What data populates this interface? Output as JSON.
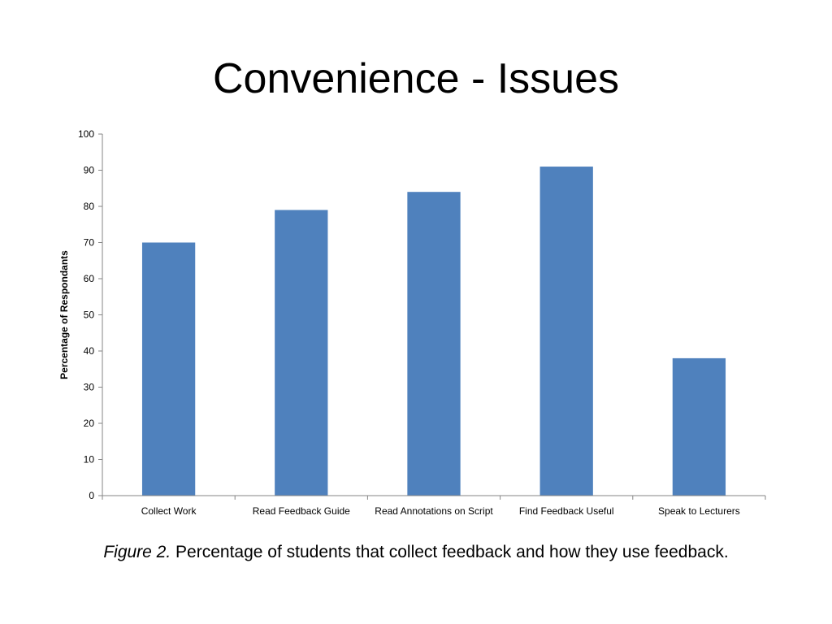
{
  "slide": {
    "title": "Convenience - Issues"
  },
  "caption": {
    "label": "Figure 2.",
    "text": "Percentage of students that collect feedback and how they use feedback."
  },
  "chart_data": {
    "type": "bar",
    "title": "",
    "xlabel": "",
    "ylabel": "Percentage of Respondants",
    "categories": [
      "Collect Work",
      "Read Feedback Guide",
      "Read Annotations on Script",
      "Find Feedback Useful",
      "Speak to Lecturers"
    ],
    "values": [
      70,
      79,
      84,
      91,
      38
    ],
    "ylim": [
      0,
      100
    ],
    "yticks": [
      0,
      10,
      20,
      30,
      40,
      50,
      60,
      70,
      80,
      90,
      100
    ],
    "grid": false,
    "legend": "none",
    "bar_color": "#4F81BD"
  }
}
